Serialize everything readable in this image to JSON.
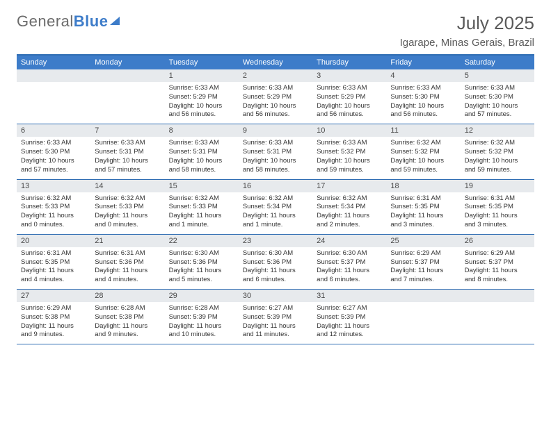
{
  "brand": {
    "part1": "General",
    "part2": "Blue"
  },
  "title": "July 2025",
  "location": "Igarape, Minas Gerais, Brazil",
  "colors": {
    "header_bg": "#3d7cc9",
    "border": "#2f6db3",
    "daynum_bg": "#e7eaed",
    "text": "#333333",
    "title_text": "#5a5a5a"
  },
  "day_names": [
    "Sunday",
    "Monday",
    "Tuesday",
    "Wednesday",
    "Thursday",
    "Friday",
    "Saturday"
  ],
  "weeks": [
    [
      null,
      null,
      {
        "n": "1",
        "sr": "Sunrise: 6:33 AM",
        "ss": "Sunset: 5:29 PM",
        "dl": "Daylight: 10 hours and 56 minutes."
      },
      {
        "n": "2",
        "sr": "Sunrise: 6:33 AM",
        "ss": "Sunset: 5:29 PM",
        "dl": "Daylight: 10 hours and 56 minutes."
      },
      {
        "n": "3",
        "sr": "Sunrise: 6:33 AM",
        "ss": "Sunset: 5:29 PM",
        "dl": "Daylight: 10 hours and 56 minutes."
      },
      {
        "n": "4",
        "sr": "Sunrise: 6:33 AM",
        "ss": "Sunset: 5:30 PM",
        "dl": "Daylight: 10 hours and 56 minutes."
      },
      {
        "n": "5",
        "sr": "Sunrise: 6:33 AM",
        "ss": "Sunset: 5:30 PM",
        "dl": "Daylight: 10 hours and 57 minutes."
      }
    ],
    [
      {
        "n": "6",
        "sr": "Sunrise: 6:33 AM",
        "ss": "Sunset: 5:30 PM",
        "dl": "Daylight: 10 hours and 57 minutes."
      },
      {
        "n": "7",
        "sr": "Sunrise: 6:33 AM",
        "ss": "Sunset: 5:31 PM",
        "dl": "Daylight: 10 hours and 57 minutes."
      },
      {
        "n": "8",
        "sr": "Sunrise: 6:33 AM",
        "ss": "Sunset: 5:31 PM",
        "dl": "Daylight: 10 hours and 58 minutes."
      },
      {
        "n": "9",
        "sr": "Sunrise: 6:33 AM",
        "ss": "Sunset: 5:31 PM",
        "dl": "Daylight: 10 hours and 58 minutes."
      },
      {
        "n": "10",
        "sr": "Sunrise: 6:33 AM",
        "ss": "Sunset: 5:32 PM",
        "dl": "Daylight: 10 hours and 59 minutes."
      },
      {
        "n": "11",
        "sr": "Sunrise: 6:32 AM",
        "ss": "Sunset: 5:32 PM",
        "dl": "Daylight: 10 hours and 59 minutes."
      },
      {
        "n": "12",
        "sr": "Sunrise: 6:32 AM",
        "ss": "Sunset: 5:32 PM",
        "dl": "Daylight: 10 hours and 59 minutes."
      }
    ],
    [
      {
        "n": "13",
        "sr": "Sunrise: 6:32 AM",
        "ss": "Sunset: 5:33 PM",
        "dl": "Daylight: 11 hours and 0 minutes."
      },
      {
        "n": "14",
        "sr": "Sunrise: 6:32 AM",
        "ss": "Sunset: 5:33 PM",
        "dl": "Daylight: 11 hours and 0 minutes."
      },
      {
        "n": "15",
        "sr": "Sunrise: 6:32 AM",
        "ss": "Sunset: 5:33 PM",
        "dl": "Daylight: 11 hours and 1 minute."
      },
      {
        "n": "16",
        "sr": "Sunrise: 6:32 AM",
        "ss": "Sunset: 5:34 PM",
        "dl": "Daylight: 11 hours and 1 minute."
      },
      {
        "n": "17",
        "sr": "Sunrise: 6:32 AM",
        "ss": "Sunset: 5:34 PM",
        "dl": "Daylight: 11 hours and 2 minutes."
      },
      {
        "n": "18",
        "sr": "Sunrise: 6:31 AM",
        "ss": "Sunset: 5:35 PM",
        "dl": "Daylight: 11 hours and 3 minutes."
      },
      {
        "n": "19",
        "sr": "Sunrise: 6:31 AM",
        "ss": "Sunset: 5:35 PM",
        "dl": "Daylight: 11 hours and 3 minutes."
      }
    ],
    [
      {
        "n": "20",
        "sr": "Sunrise: 6:31 AM",
        "ss": "Sunset: 5:35 PM",
        "dl": "Daylight: 11 hours and 4 minutes."
      },
      {
        "n": "21",
        "sr": "Sunrise: 6:31 AM",
        "ss": "Sunset: 5:36 PM",
        "dl": "Daylight: 11 hours and 4 minutes."
      },
      {
        "n": "22",
        "sr": "Sunrise: 6:30 AM",
        "ss": "Sunset: 5:36 PM",
        "dl": "Daylight: 11 hours and 5 minutes."
      },
      {
        "n": "23",
        "sr": "Sunrise: 6:30 AM",
        "ss": "Sunset: 5:36 PM",
        "dl": "Daylight: 11 hours and 6 minutes."
      },
      {
        "n": "24",
        "sr": "Sunrise: 6:30 AM",
        "ss": "Sunset: 5:37 PM",
        "dl": "Daylight: 11 hours and 6 minutes."
      },
      {
        "n": "25",
        "sr": "Sunrise: 6:29 AM",
        "ss": "Sunset: 5:37 PM",
        "dl": "Daylight: 11 hours and 7 minutes."
      },
      {
        "n": "26",
        "sr": "Sunrise: 6:29 AM",
        "ss": "Sunset: 5:37 PM",
        "dl": "Daylight: 11 hours and 8 minutes."
      }
    ],
    [
      {
        "n": "27",
        "sr": "Sunrise: 6:29 AM",
        "ss": "Sunset: 5:38 PM",
        "dl": "Daylight: 11 hours and 9 minutes."
      },
      {
        "n": "28",
        "sr": "Sunrise: 6:28 AM",
        "ss": "Sunset: 5:38 PM",
        "dl": "Daylight: 11 hours and 9 minutes."
      },
      {
        "n": "29",
        "sr": "Sunrise: 6:28 AM",
        "ss": "Sunset: 5:39 PM",
        "dl": "Daylight: 11 hours and 10 minutes."
      },
      {
        "n": "30",
        "sr": "Sunrise: 6:27 AM",
        "ss": "Sunset: 5:39 PM",
        "dl": "Daylight: 11 hours and 11 minutes."
      },
      {
        "n": "31",
        "sr": "Sunrise: 6:27 AM",
        "ss": "Sunset: 5:39 PM",
        "dl": "Daylight: 11 hours and 12 minutes."
      },
      null,
      null
    ]
  ]
}
